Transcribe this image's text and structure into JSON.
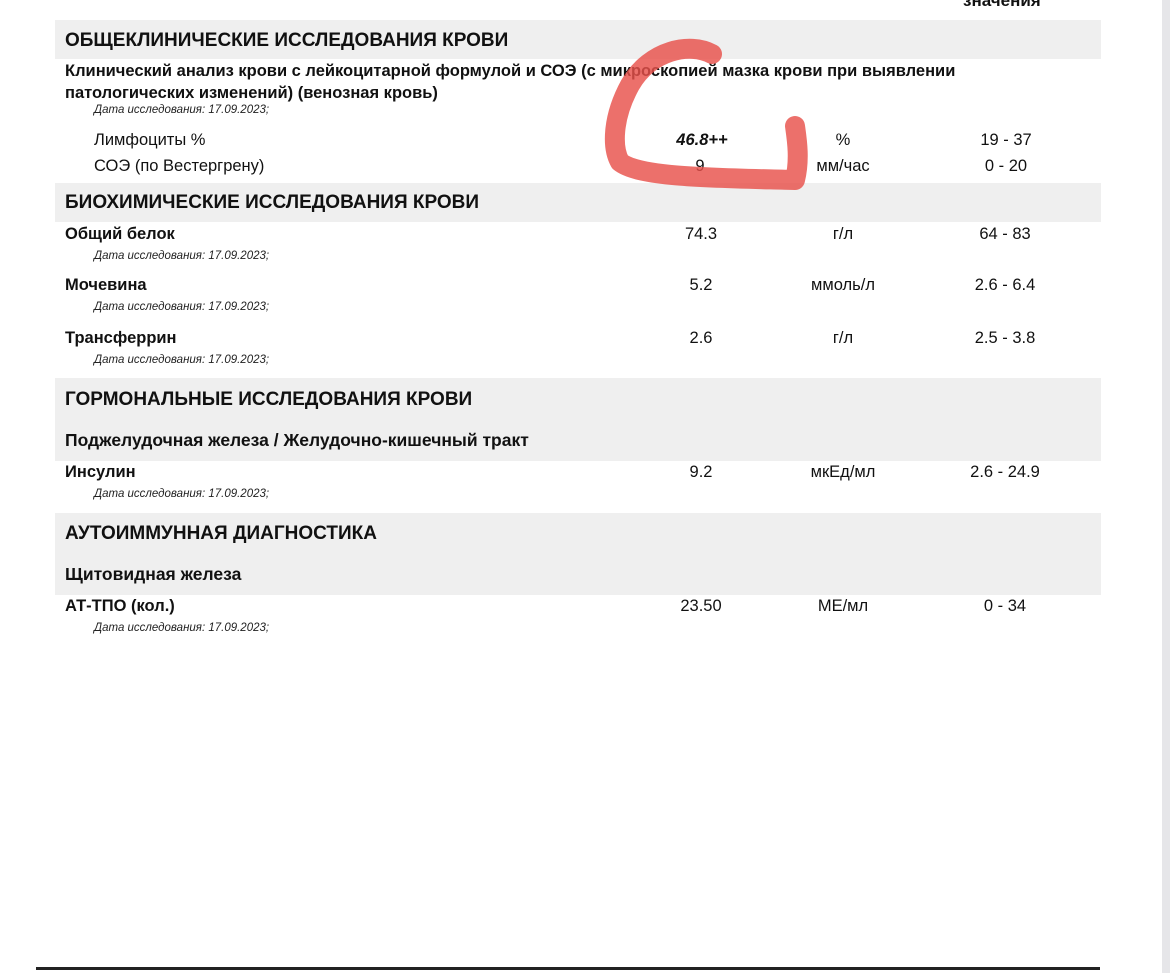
{
  "header": {
    "ref_col_tail": "значения"
  },
  "sections": [
    {
      "title": "ОБЩЕКЛИНИЧЕСКИЕ ИССЛЕДОВАНИЯ КРОВИ",
      "panel": {
        "title_line1": "Клинический анализ крови с лейкоцитарной формулой и СОЭ (с микроскопией мазка крови при выявлении",
        "title_line2": "патологических изменений) (венозная кровь)",
        "date": "Дата исследования: 17.09.2023;"
      },
      "rows": [
        {
          "name": "Лимфоциты %",
          "value": "46.8++",
          "unit": "%",
          "range": "19 - 37",
          "flag": "high"
        },
        {
          "name": "СОЭ (по Вестергрену)",
          "value": "9",
          "unit": "мм/час",
          "range": "0 - 20"
        }
      ]
    },
    {
      "title": "БИОХИМИЧЕСКИЕ ИССЛЕДОВАНИЯ КРОВИ",
      "rows": [
        {
          "name": "Общий белок",
          "value": "74.3",
          "unit": "г/л",
          "range": "64 - 83",
          "date": "Дата исследования: 17.09.2023;"
        },
        {
          "name": "Мочевина",
          "value": "5.2",
          "unit": "ммоль/л",
          "range": "2.6 - 6.4",
          "date": "Дата исследования: 17.09.2023;"
        },
        {
          "name": "Трансферрин",
          "value": "2.6",
          "unit": "г/л",
          "range": "2.5 - 3.8",
          "date": "Дата исследования: 17.09.2023;"
        }
      ]
    },
    {
      "title": "ГОРМОНАЛЬНЫЕ ИССЛЕДОВАНИЯ КРОВИ",
      "subgroup": "Поджелудочная железа / Желудочно-кишечный тракт",
      "rows": [
        {
          "name": "Инсулин",
          "value": "9.2",
          "unit": "мкЕд/мл",
          "range": "2.6 - 24.9",
          "date": "Дата исследования: 17.09.2023;"
        }
      ]
    },
    {
      "title": "АУТОИММУННАЯ ДИАГНОСТИКА",
      "subgroup": "Щитовидная железа",
      "rows": [
        {
          "name": "АТ-ТПО (кол.)",
          "value": "23.50",
          "unit": "МЕ/мл",
          "range": "0 - 34",
          "date": "Дата исследования: 17.09.2023;"
        }
      ]
    }
  ],
  "annotation": {
    "color": "#e8514a"
  }
}
